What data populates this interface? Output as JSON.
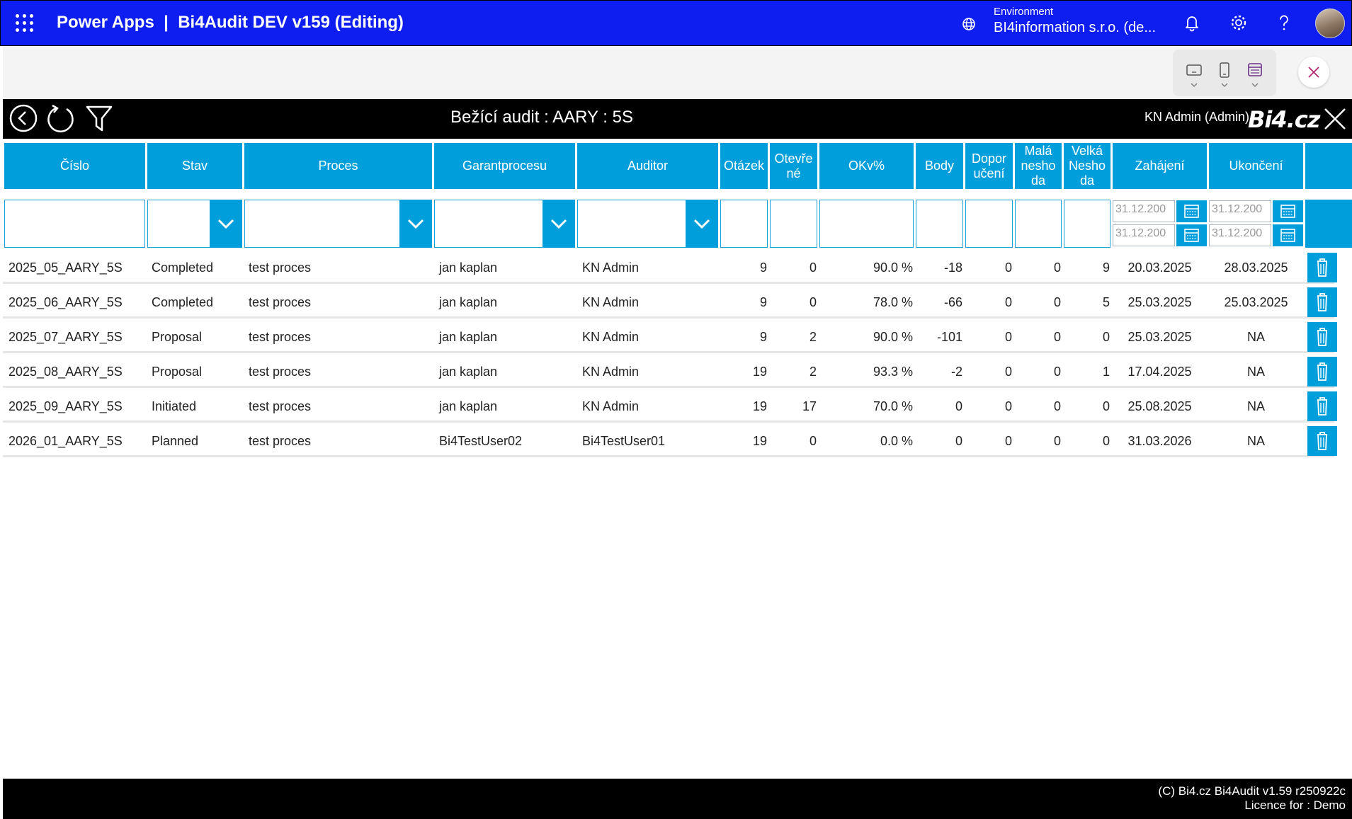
{
  "topbar": {
    "app_name": "Power Apps",
    "separator": "|",
    "app_title": "Bi4Audit DEV v159 (Editing)",
    "env_label": "Environment",
    "env_value": "BI4information s.r.o. (de...",
    "icons": [
      "waffle-icon",
      "globe-icon",
      "bell-icon",
      "gear-icon",
      "help-icon"
    ],
    "bar_color": "#0f1ef0"
  },
  "app": {
    "title": "Bežící audit : AARY : 5S",
    "user": "KN Admin (Admin)",
    "logo": "Bi4.cz",
    "accent": "#009fdc"
  },
  "columns": [
    "Číslo",
    "Stav",
    "Proces",
    "Garant procesu",
    "Auditor",
    "Otázek",
    "Otevře né",
    "OK v %",
    "Body",
    "Dopor učení",
    "Malá nesho da",
    "Velká Nesho da",
    "Zahájení",
    "Ukončení"
  ],
  "filters": {
    "date_from_placeholder": "31.12.200",
    "date_to_placeholder": "31.12.200"
  },
  "rows": [
    {
      "cislo": "2025_05_AARY_5S",
      "stav": "Completed",
      "proces": "test proces",
      "garant": "jan kaplan",
      "auditor": "KN Admin",
      "otazek": "9",
      "otevrene": "0",
      "ok": "90.0 %",
      "body": "-18",
      "doporuceni": "0",
      "mala": "0",
      "velka": "9",
      "zahajeni": "20.03.2025",
      "ukonceni": "28.03.2025"
    },
    {
      "cislo": "2025_06_AARY_5S",
      "stav": "Completed",
      "proces": "test proces",
      "garant": "jan kaplan",
      "auditor": "KN Admin",
      "otazek": "9",
      "otevrene": "0",
      "ok": "78.0 %",
      "body": "-66",
      "doporuceni": "0",
      "mala": "0",
      "velka": "5",
      "zahajeni": "25.03.2025",
      "ukonceni": "25.03.2025"
    },
    {
      "cislo": "2025_07_AARY_5S",
      "stav": "Proposal",
      "proces": "test proces",
      "garant": "jan kaplan",
      "auditor": "KN Admin",
      "otazek": "9",
      "otevrene": "2",
      "ok": "90.0 %",
      "body": "-101",
      "doporuceni": "0",
      "mala": "0",
      "velka": "0",
      "zahajeni": "25.03.2025",
      "ukonceni": "NA"
    },
    {
      "cislo": "2025_08_AARY_5S",
      "stav": "Proposal",
      "proces": "test proces",
      "garant": "jan kaplan",
      "auditor": "KN Admin",
      "otazek": "19",
      "otevrene": "2",
      "ok": "93.3 %",
      "body": "-2",
      "doporuceni": "0",
      "mala": "0",
      "velka": "1",
      "zahajeni": "17.04.2025",
      "ukonceni": "NA"
    },
    {
      "cislo": "2025_09_AARY_5S",
      "stav": "Initiated",
      "proces": "test proces",
      "garant": "jan kaplan",
      "auditor": "KN Admin",
      "otazek": "19",
      "otevrene": "17",
      "ok": "70.0 %",
      "body": "0",
      "doporuceni": "0",
      "mala": "0",
      "velka": "0",
      "zahajeni": "25.08.2025",
      "ukonceni": "NA"
    },
    {
      "cislo": "2026_01_AARY_5S",
      "stav": "Planned",
      "proces": "test proces",
      "garant": "Bi4TestUser02",
      "auditor": "Bi4TestUser01",
      "otazek": "19",
      "otevrene": "0",
      "ok": "0.0 %",
      "body": "0",
      "doporuceni": "0",
      "mala": "0",
      "velka": "0",
      "zahajeni": "31.03.2026",
      "ukonceni": "NA"
    }
  ],
  "footer": {
    "line1": "(C) Bi4.cz Bi4Audit v1.59 r250922c",
    "line2": "Licence for : Demo"
  }
}
